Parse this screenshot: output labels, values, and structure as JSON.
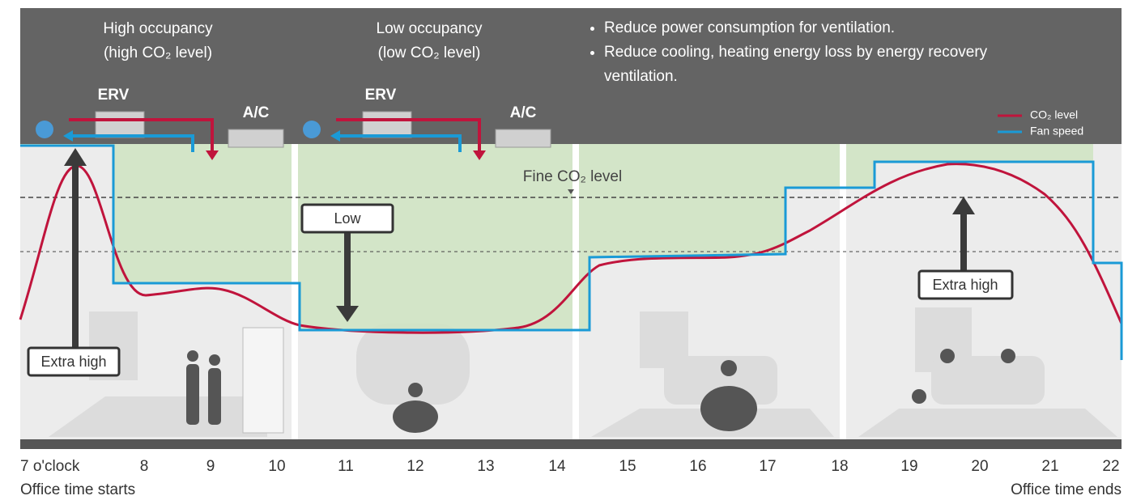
{
  "header": {
    "high_occupancy": {
      "title": "High occupancy",
      "subtitle": "(high CO₂ level)"
    },
    "low_occupancy": {
      "title": "Low occupancy",
      "subtitle": "(low CO₂ level)"
    },
    "bullets": [
      "Reduce power consumption for ventilation.",
      "Reduce cooling, heating energy loss by energy recovery ventilation."
    ]
  },
  "units": [
    {
      "erv": "ERV",
      "ac": "A/C"
    },
    {
      "erv": "ERV",
      "ac": "A/C"
    }
  ],
  "legend": [
    "CO₂ level",
    "Fan speed"
  ],
  "annotations": {
    "fine_level": "Fine CO₂ level",
    "labels": [
      "Extra high",
      "Low",
      "Extra high"
    ]
  },
  "timeline": {
    "hours": [
      "7 o'clock",
      "8",
      "9",
      "10",
      "11",
      "12",
      "13",
      "14",
      "15",
      "16",
      "17",
      "18",
      "19",
      "20",
      "21",
      "22"
    ],
    "start": "Office time starts",
    "end": "Office time ends"
  }
}
